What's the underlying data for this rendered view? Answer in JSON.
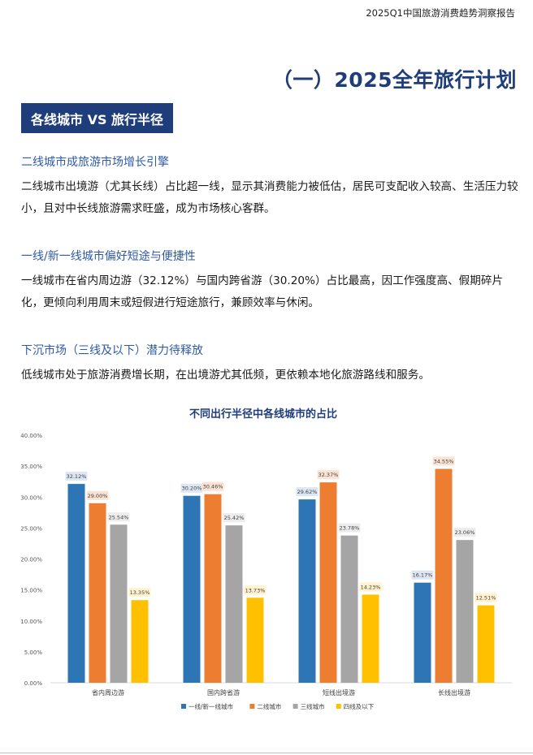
{
  "header": {
    "report_title": "2025Q1中国旅游消费趋势洞察报告"
  },
  "section": {
    "title": "（一）2025全年旅行计划"
  },
  "badge": {
    "label": "各线城市 VS 旅行半径"
  },
  "blocks": [
    {
      "heading": "二线城市成旅游市场增长引擎",
      "text": "二线城市出境游（尤其长线）占比超一线，显示其消费能力被低估，居民可支配收入较高、生活压力较小，且对中长线旅游需求旺盛，成为市场核心客群。"
    },
    {
      "heading": "一线/新一线城市偏好短途与便捷性",
      "text": "一线城市在省内周边游（32.12%）与国内跨省游（30.20%）占比最高，因工作强度高、假期碎片化，更倾向利用周末或短假进行短途旅行，兼顾效率与休闲。"
    },
    {
      "heading": "下沉市场（三线及以下）潜力待释放",
      "text": "低线城市处于旅游消费增长期，在出境游尤其低频，更依赖本地化旅游路线和服务。"
    }
  ],
  "chart_data": {
    "type": "bar",
    "title": "不同出行半径中各线城市的占比",
    "categories": [
      "省内周边游",
      "国内跨省游",
      "短线出境游",
      "长线出境游"
    ],
    "series": [
      {
        "name": "一线/新一线城市",
        "values": [
          32.12,
          30.2,
          29.62,
          16.17
        ],
        "labels": [
          "32.12%",
          "30.20%",
          "29.62%",
          "16.17%"
        ],
        "color": "#2e75b6",
        "label_bg": "#dde6f3"
      },
      {
        "name": "二线城市",
        "values": [
          29.0,
          30.46,
          32.37,
          34.55
        ],
        "labels": [
          "29.00%",
          "30.46%",
          "32.37%",
          "34.55%"
        ],
        "color": "#ed7d31",
        "label_bg": "#fbe3d4"
      },
      {
        "name": "三线城市",
        "values": [
          25.54,
          25.42,
          23.78,
          23.06
        ],
        "labels": [
          "25.54%",
          "25.42%",
          "23.78%",
          "23.06%"
        ],
        "color": "#a5a5a5",
        "label_bg": "#ececec"
      },
      {
        "name": "四线及以下",
        "values": [
          13.35,
          13.73,
          14.23,
          12.51
        ],
        "labels": [
          "13.35%",
          "13.73%",
          "14.23%",
          "12.51%"
        ],
        "color": "#ffc000",
        "label_bg": "#fff2cc"
      }
    ],
    "ylim": [
      0,
      40
    ],
    "yticks": [
      "0.00%",
      "5.00%",
      "10.00%",
      "15.00%",
      "20.00%",
      "25.00%",
      "30.00%",
      "35.00%",
      "40.00%"
    ],
    "grid": false,
    "legend_position": "bottom",
    "title_color": "#1f3d7a"
  }
}
